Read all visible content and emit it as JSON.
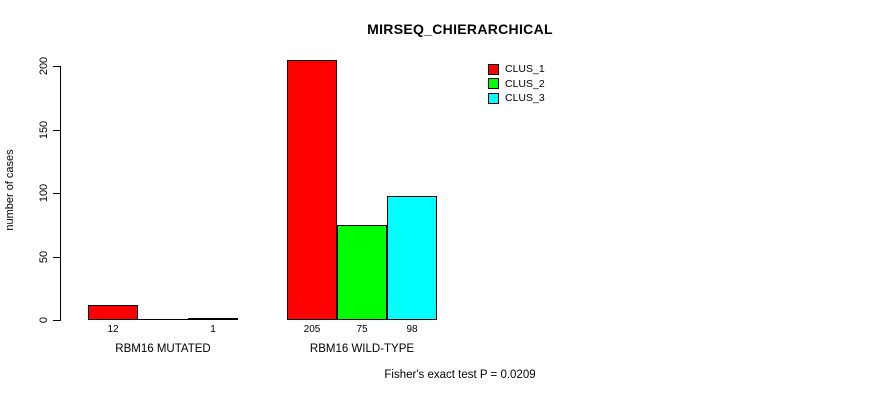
{
  "chart_data": {
    "type": "bar",
    "title": "MIRSEQ_CHIERARCHICAL",
    "xlabel": "",
    "ylabel": "number of cases",
    "ylim": [
      0,
      205
    ],
    "yticks": [
      0,
      50,
      100,
      150,
      200
    ],
    "grid": false,
    "legend_position": "top-right",
    "categories": [
      "RBM16 MUTATED",
      "RBM16 WILD-TYPE"
    ],
    "series": [
      {
        "name": "CLUS_1",
        "color": "#ff0000",
        "values": [
          12,
          205
        ]
      },
      {
        "name": "CLUS_2",
        "color": "#00ff00",
        "values": [
          0,
          75
        ]
      },
      {
        "name": "CLUS_3",
        "color": "#00ffff",
        "values": [
          1,
          98
        ]
      }
    ],
    "bar_value_labels": [
      [
        "12",
        "",
        "1"
      ],
      [
        "205",
        "75",
        "98"
      ]
    ],
    "annotation": "Fisher's exact test P = 0.0209"
  }
}
